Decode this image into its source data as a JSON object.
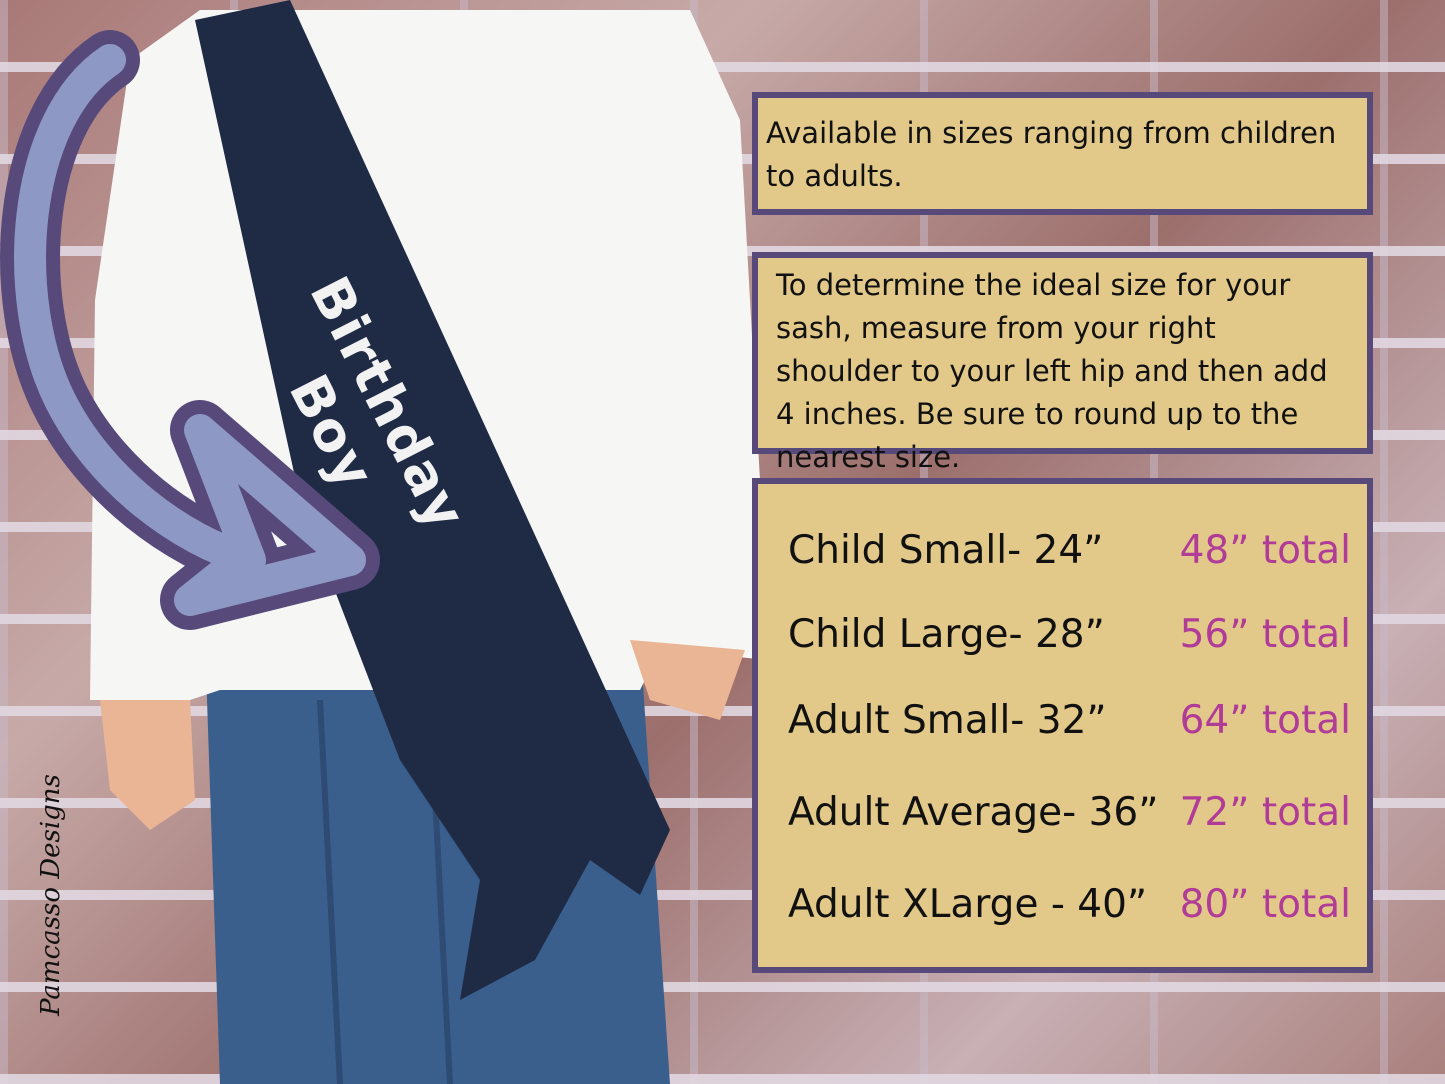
{
  "info_boxes": [
    {
      "text": "Available in sizes ranging from children to adults."
    },
    {
      "text": "To determine the ideal size for your sash, measure from your right shoulder to your left hip and then add 4 inches. Be sure to round up to the nearest size."
    }
  ],
  "sizes": [
    {
      "label": "Child Small-  24”",
      "total": "48” total"
    },
    {
      "label": "Child Large- 28”",
      "total": "56” total"
    },
    {
      "label": "Adult Small-  32”",
      "total": "64” total"
    },
    {
      "label": "Adult Average-  36”",
      "total": "72” total"
    },
    {
      "label": "Adult XLarge -  40”",
      "total": "80” total"
    }
  ],
  "sash_text": "Birthday Boy",
  "watermark": "Pamcasso Designs",
  "colors": {
    "box_fill": "#e2c98a",
    "box_border": "#574a7a",
    "total_text": "#b03c98",
    "sash": "#1f2a45",
    "arrow": "#8e98c4"
  }
}
